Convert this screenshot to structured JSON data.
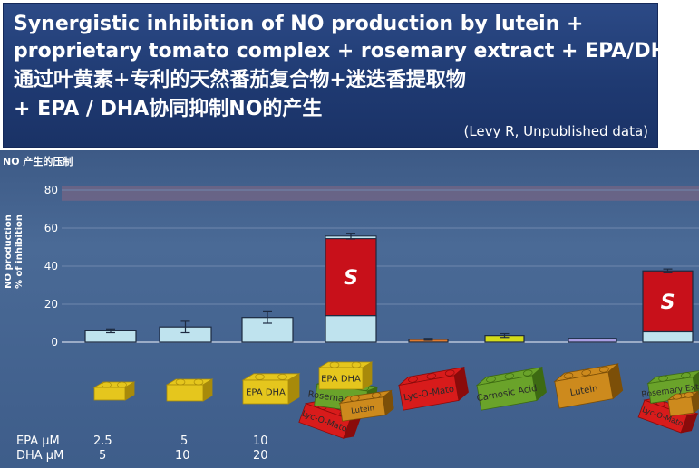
{
  "slide": {
    "title_lines": [
      "Synergistic inhibition of NO production by lutein +",
      "proprietary tomato complex + rosemary extract + EPA/DHA",
      "通过叶黄素+专利的天然番茄复合物+迷迭香提取物",
      "+ EPA / DHA协同抑制NO的产生"
    ],
    "credit": "(Levy R, Unpublished data)",
    "panel_title": "NO 产生的压制"
  },
  "chart_data": {
    "type": "bar",
    "ylabel": "NO production % of inhibition",
    "ylim": [
      0,
      80
    ],
    "yticks": [
      0,
      20,
      40,
      60,
      80
    ],
    "bars": [
      {
        "base": 6,
        "error": 1
      },
      {
        "base": 8,
        "error": 3
      },
      {
        "base": 13,
        "error": 3
      },
      {
        "base": 14,
        "synergy": 40.5,
        "error": 1.5
      },
      {
        "base": 1.5,
        "error": 0.5
      },
      {
        "base": 3.5,
        "error": 1
      },
      {
        "base": 2
      },
      {
        "base": 5.5,
        "synergy": 32,
        "error": 1
      }
    ],
    "synergy_label": "S",
    "block_labels": {
      "epa_dha": "EPA DHA",
      "rosemary": "Rosemary Extr",
      "lutein": "Lutein",
      "lycopene": "Lyc-O-Mato",
      "carnosic": "Carnosic Acid"
    },
    "colors": {
      "base": "#bfe3ee",
      "synergy": "#c8101a",
      "lycopene": "#e07a2e",
      "carnosic": "#d4dc18",
      "lutein": "#a99ee2"
    }
  },
  "table": {
    "epa_label": "EPA μM",
    "dha_label": "DHA μM",
    "epa_values": [
      "2.5",
      "5",
      "10"
    ],
    "dha_values": [
      "5",
      "10",
      "20"
    ]
  }
}
